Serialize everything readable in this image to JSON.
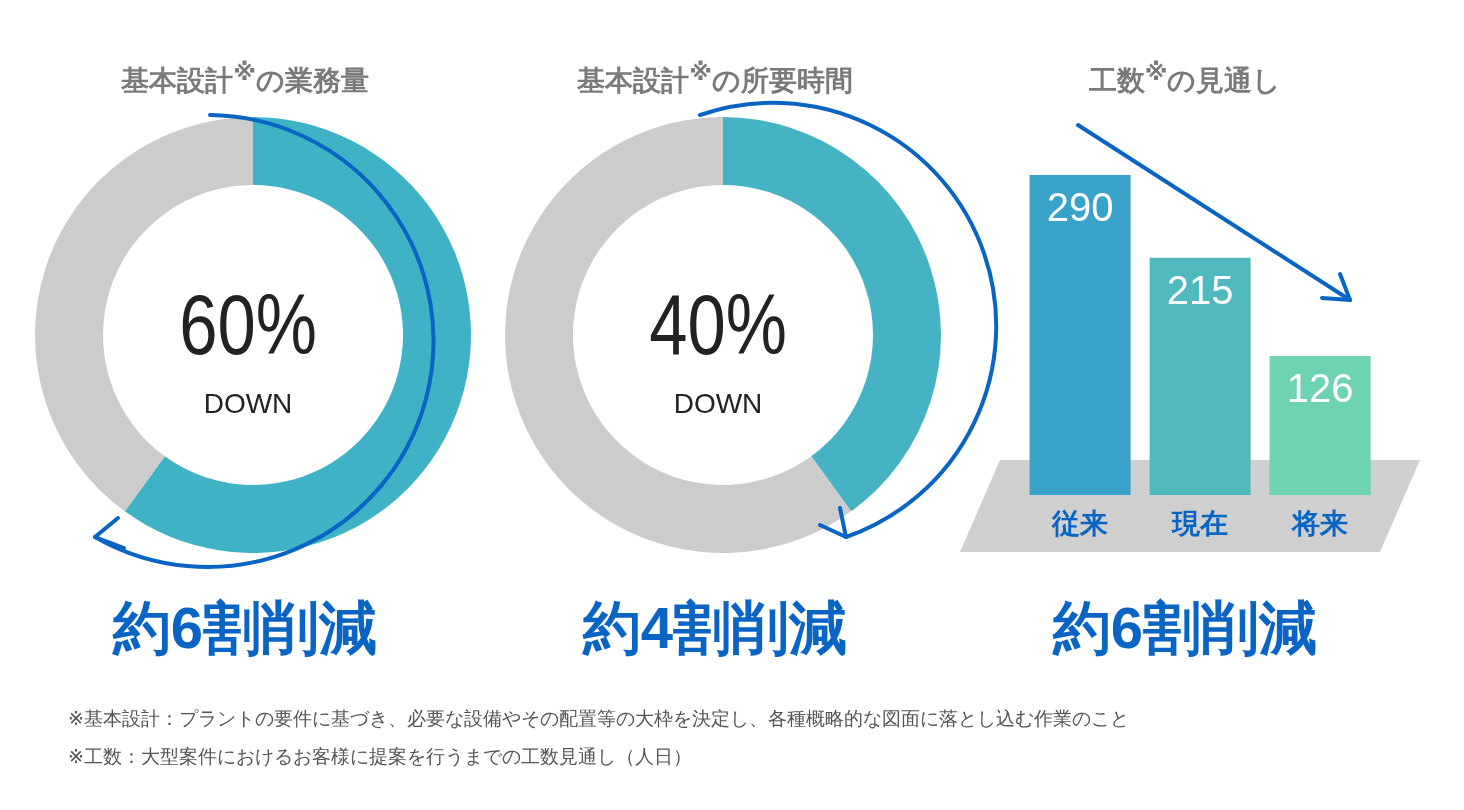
{
  "chart_data": [
    {
      "type": "donut",
      "title": "基本設計$^{※}$の業務量",
      "categories": [
        null,
        null
      ],
      "values": [
        60,
        40
      ],
      "colors": [
        "#3fb2c6",
        "#cccccc"
      ],
      "annotations": [
        "60%",
        "DOWN",
        "約6割削減"
      ]
    },
    {
      "type": "donut",
      "title": "基本設計$^{※}$の所要時間",
      "categories": [
        null,
        null
      ],
      "values": [
        40,
        60
      ],
      "colors": [
        "#45b3c4",
        "#cccccc"
      ],
      "annotations": [
        "40%",
        "DOWN",
        "約4割削減"
      ]
    },
    {
      "type": "bar",
      "title": "工数$^{※}$の見通し",
      "categories": [
        "従来",
        "現在",
        "将来"
      ],
      "values": [
        290,
        215,
        126
      ],
      "colors": [
        "#38a2c9",
        "#4fb9bd",
        "#6dd3b3"
      ],
      "data_labels": true,
      "annotations": [
        "約6割削減",
        "※基本設計：プラントの要件に基づき、必要な設備やその配置等の大枠を決定し、各種概略的な図面に落とし込む作業のこと",
        "※工数：大型案件におけるお客様に提案を行うまでの工数見通し（人日）"
      ]
    }
  ]
}
